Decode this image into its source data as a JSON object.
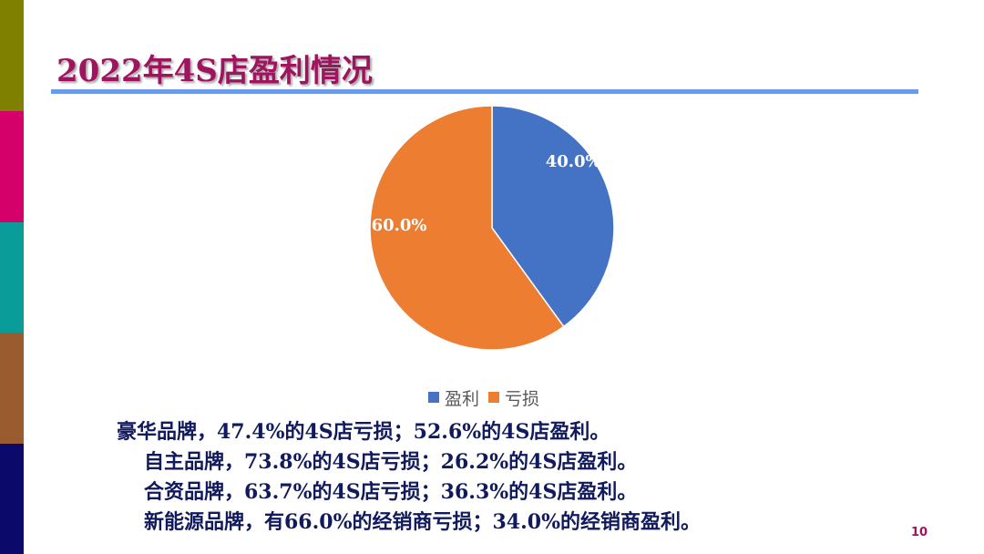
{
  "slide": {
    "title": "2022年4S店盈利情况",
    "page_number": "10",
    "accent_colors": [
      "#7f7f00",
      "#d6006b",
      "#0a9c99",
      "#9a5c2e",
      "#0b0a6a"
    ],
    "title_color": "#a0135e",
    "rule_color": "#6b9be8",
    "body_lines": [
      "豪华品牌，47.4%的4S店亏损；52.6%的4S店盈利。",
      "自主品牌，73.8%的4S店亏损；26.2%的4S店盈利。",
      "合资品牌，63.7%的4S店亏损；36.3%的4S店盈利。",
      "新能源品牌，有66.0%的经销商亏损；34.0%的经销商盈利。"
    ]
  },
  "chart_data": {
    "type": "pie",
    "title": "",
    "categories": [
      "盈利",
      "亏损"
    ],
    "values": [
      40.0,
      60.0
    ],
    "labels": [
      "40.0%",
      "60.0%"
    ],
    "colors": [
      "#4472c4",
      "#ed7d31"
    ],
    "legend_position": "bottom",
    "start_angle_deg": 0,
    "direction": "clockwise"
  }
}
